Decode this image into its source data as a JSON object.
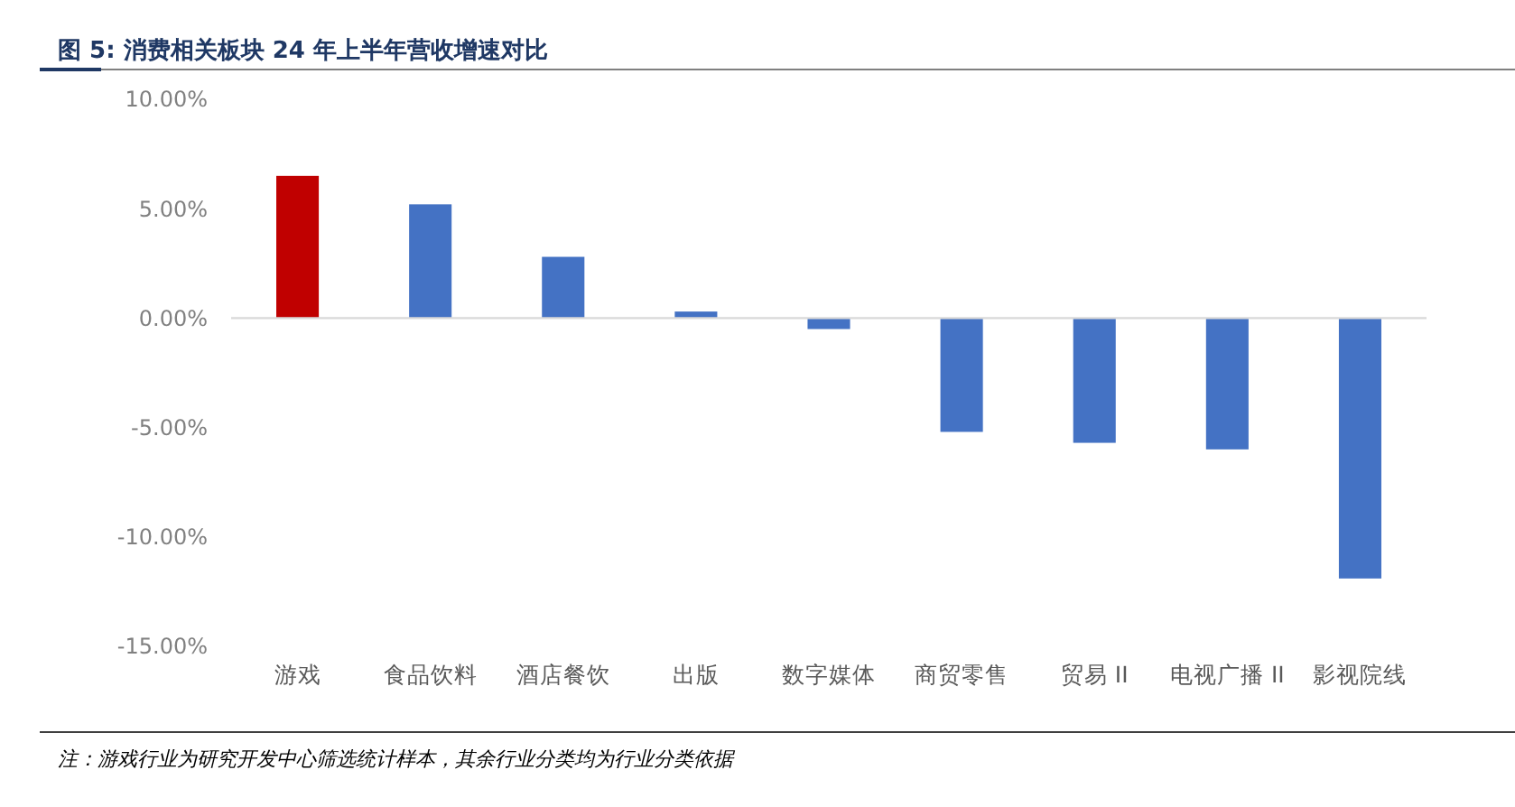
{
  "chart_data": {
    "type": "bar",
    "title": "图 5:  消费相关板块 24 年上半年营收增速对比",
    "categories": [
      "游戏",
      "食品饮料",
      "酒店餐饮",
      "出版",
      "数字媒体",
      "商贸零售",
      "贸易 II",
      "电视广播 II",
      "影视院线"
    ],
    "values": [
      6.5,
      5.2,
      2.8,
      0.3,
      -0.5,
      -5.2,
      -5.7,
      -6.0,
      -11.9
    ],
    "colors": [
      "#c00000",
      "#4472c4",
      "#4472c4",
      "#4472c4",
      "#4472c4",
      "#4472c4",
      "#4472c4",
      "#4472c4",
      "#4472c4"
    ],
    "ylim": [
      -15,
      10
    ],
    "yticks": [
      {
        "value": 10,
        "label": "10.00%"
      },
      {
        "value": 5,
        "label": "5.00%"
      },
      {
        "value": 0,
        "label": "0.00%"
      },
      {
        "value": -5,
        "label": "-5.00%"
      },
      {
        "value": -10,
        "label": "-10.00%"
      },
      {
        "value": -15,
        "label": "-15.00%"
      }
    ],
    "annotations": [
      "注：游戏行业为研究开发中心筛选统计样本，其余行业分类均为行业分类依据"
    ]
  }
}
